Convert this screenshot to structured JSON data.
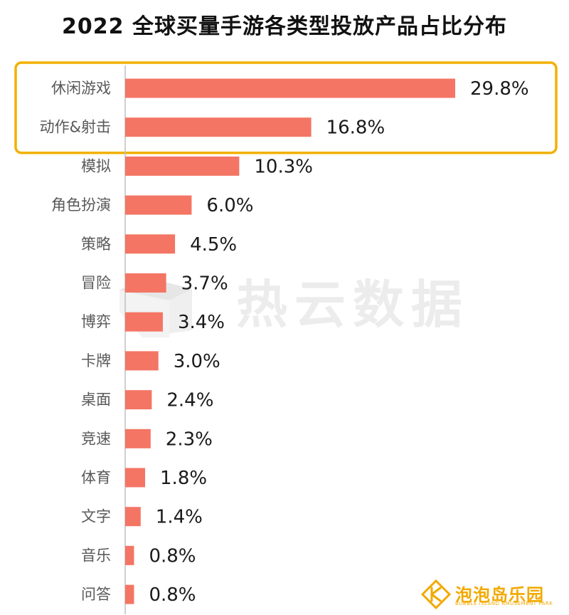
{
  "chart_data": {
    "type": "bar",
    "orientation": "horizontal",
    "title": "2022 全球买量手游各类型投放产品占比分布",
    "categories": [
      "休闲游戏",
      "动作&射击",
      "模拟",
      "角色扮演",
      "策略",
      "冒险",
      "博弈",
      "卡牌",
      "桌面",
      "竞速",
      "体育",
      "文字",
      "音乐",
      "问答"
    ],
    "values": [
      29.8,
      16.8,
      10.3,
      6.0,
      4.5,
      3.7,
      3.4,
      3.0,
      2.4,
      2.3,
      1.8,
      1.4,
      0.8,
      0.8
    ],
    "value_labels": [
      "29.8%",
      "16.8%",
      "10.3%",
      "6.0%",
      "4.5%",
      "3.7%",
      "3.4%",
      "3.0%",
      "2.4%",
      "2.3%",
      "1.8%",
      "1.4%",
      "0.8%",
      "0.8%"
    ],
    "unit": "%",
    "xlim": [
      0,
      29.8
    ],
    "bar_color": "#f47564",
    "highlight_color": "#f2b100",
    "highlighted_categories": [
      "休闲游戏",
      "动作&射击"
    ],
    "grid": false,
    "legend": "none"
  },
  "watermark": {
    "text": "热云数据",
    "icon": "cube-logo-icon"
  },
  "logo": {
    "name": "泡泡岛乐园",
    "subtitle": "BUBBLE ISLAND AMUSEMENT PARK",
    "icon": "bubble-island-logo-icon",
    "color": "#f2a900"
  }
}
